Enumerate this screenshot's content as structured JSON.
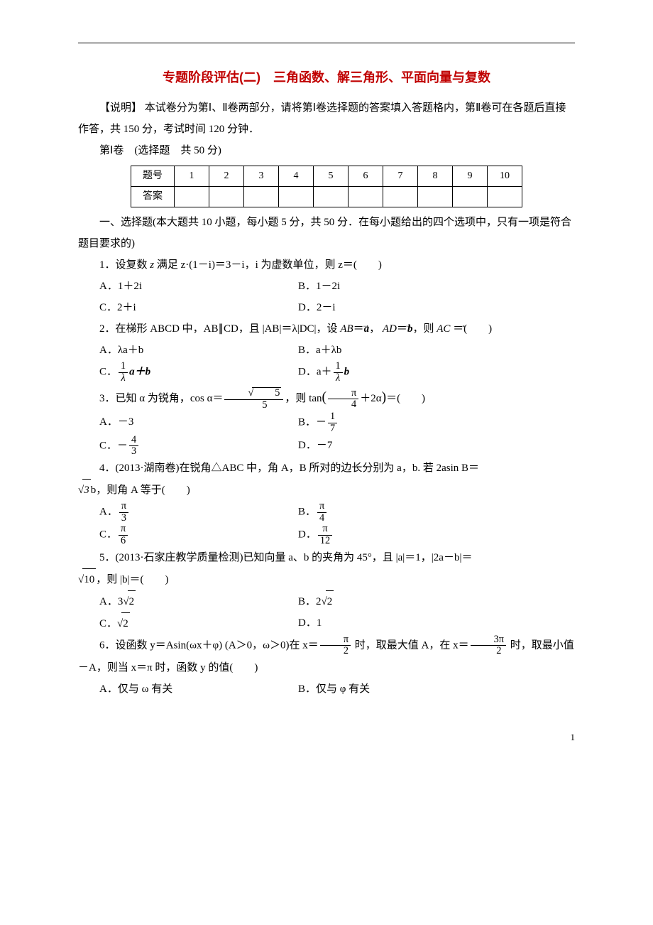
{
  "title": "专题阶段评估(二)　三角函数、解三角形、平面向量与复数",
  "instructions": {
    "label": "【说明】",
    "text": "本试卷分为第Ⅰ、Ⅱ卷两部分，请将第Ⅰ卷选择题的答案填入答题格内，第Ⅱ卷可在各题后直接作答，共 150 分，考试时间 120 分钟．"
  },
  "part1_header": "第Ⅰ卷　(选择题　共 50 分)",
  "answer_grid": {
    "row1_label": "题号",
    "row2_label": "答案",
    "cols": [
      "1",
      "2",
      "3",
      "4",
      "5",
      "6",
      "7",
      "8",
      "9",
      "10"
    ]
  },
  "section1_header": "一、选择题(本大题共 10 小题，每小题 5 分，共 50 分．在每小题给出的四个选项中，只有一项是符合题目要求的)",
  "q1": {
    "stem_pre": "1．设复数 ",
    "stem_mid": " 满足 ",
    "stem_expr": "z·(1－i)＝3－i，i 为虚数单位，则 z＝(　　)",
    "A": "A．1＋2i",
    "B": "B．1－2i",
    "C": "C．2＋i",
    "D": "D．2－i"
  },
  "q2": {
    "stem": "2．在梯形 ABCD 中，AB∥CD，且 |AB|＝λ|DC|，设",
    "stem2": "＝(　　)",
    "A": "A．λa＋b",
    "B": "B．a＋λb",
    "C_pre": "C．",
    "C_post": "a＋b",
    "D_pre": "D．a＋",
    "D_post": "b",
    "frac_num": "1",
    "frac_den": "λ"
  },
  "q3": {
    "stem_pre": "3．已知 α 为锐角，cos α＝",
    "stem_mid": "，则 tan",
    "stem_post": "＝(　　)",
    "A": "A．－3",
    "B_pre": "B．－",
    "B_num": "1",
    "B_den": "7",
    "C_pre": "C．－",
    "C_num": "4",
    "C_den": "3",
    "D": "D．－7",
    "cos_num": "5",
    "cos_den": "5",
    "tan_num": "π",
    "tan_den": "4"
  },
  "q4": {
    "stem": "4．(2013·湖南卷)在锐角△ABC 中，角 A，B 所对的边长分别为 a，b. 若 2asin B＝",
    "stem2": "b，则角 A 等于(　　)",
    "A_num": "π",
    "A_den": "3",
    "A_pre": "A．",
    "B_num": "π",
    "B_den": "4",
    "B_pre": "B．",
    "C_num": "π",
    "C_den": "6",
    "C_pre": "C．",
    "D_num": "π",
    "D_den": "12",
    "D_pre": "D．",
    "sqrt_val": "3"
  },
  "q5": {
    "stem": "5．(2013·石家庄教学质量检测)已知向量 a、b 的夹角为 45°，且 |a|＝1，|2a－b|＝",
    "stem2": "，则 |b|＝(　　)",
    "sqrt10": "10",
    "A_pre": "A．3",
    "A_sq": "2",
    "B_pre": "B．2",
    "B_sq": "2",
    "C_pre": "C．",
    "C_sq": "2",
    "D": "D．1"
  },
  "q6": {
    "stem_pre": "6．设函数 y＝Asin(ωx＋φ) (A＞0，ω＞0)在 x＝",
    "stem_mid": " 时，取最大值 A，在 x＝",
    "stem_post": " 时，取最小值－A，则当 x＝π 时，函数 y 的值(　　)",
    "f1_num": "π",
    "f1_den": "2",
    "f2_num": "3π",
    "f2_den": "2",
    "A": "A．仅与 ω 有关",
    "B": "B．仅与 φ 有关"
  },
  "pagenum": "1"
}
